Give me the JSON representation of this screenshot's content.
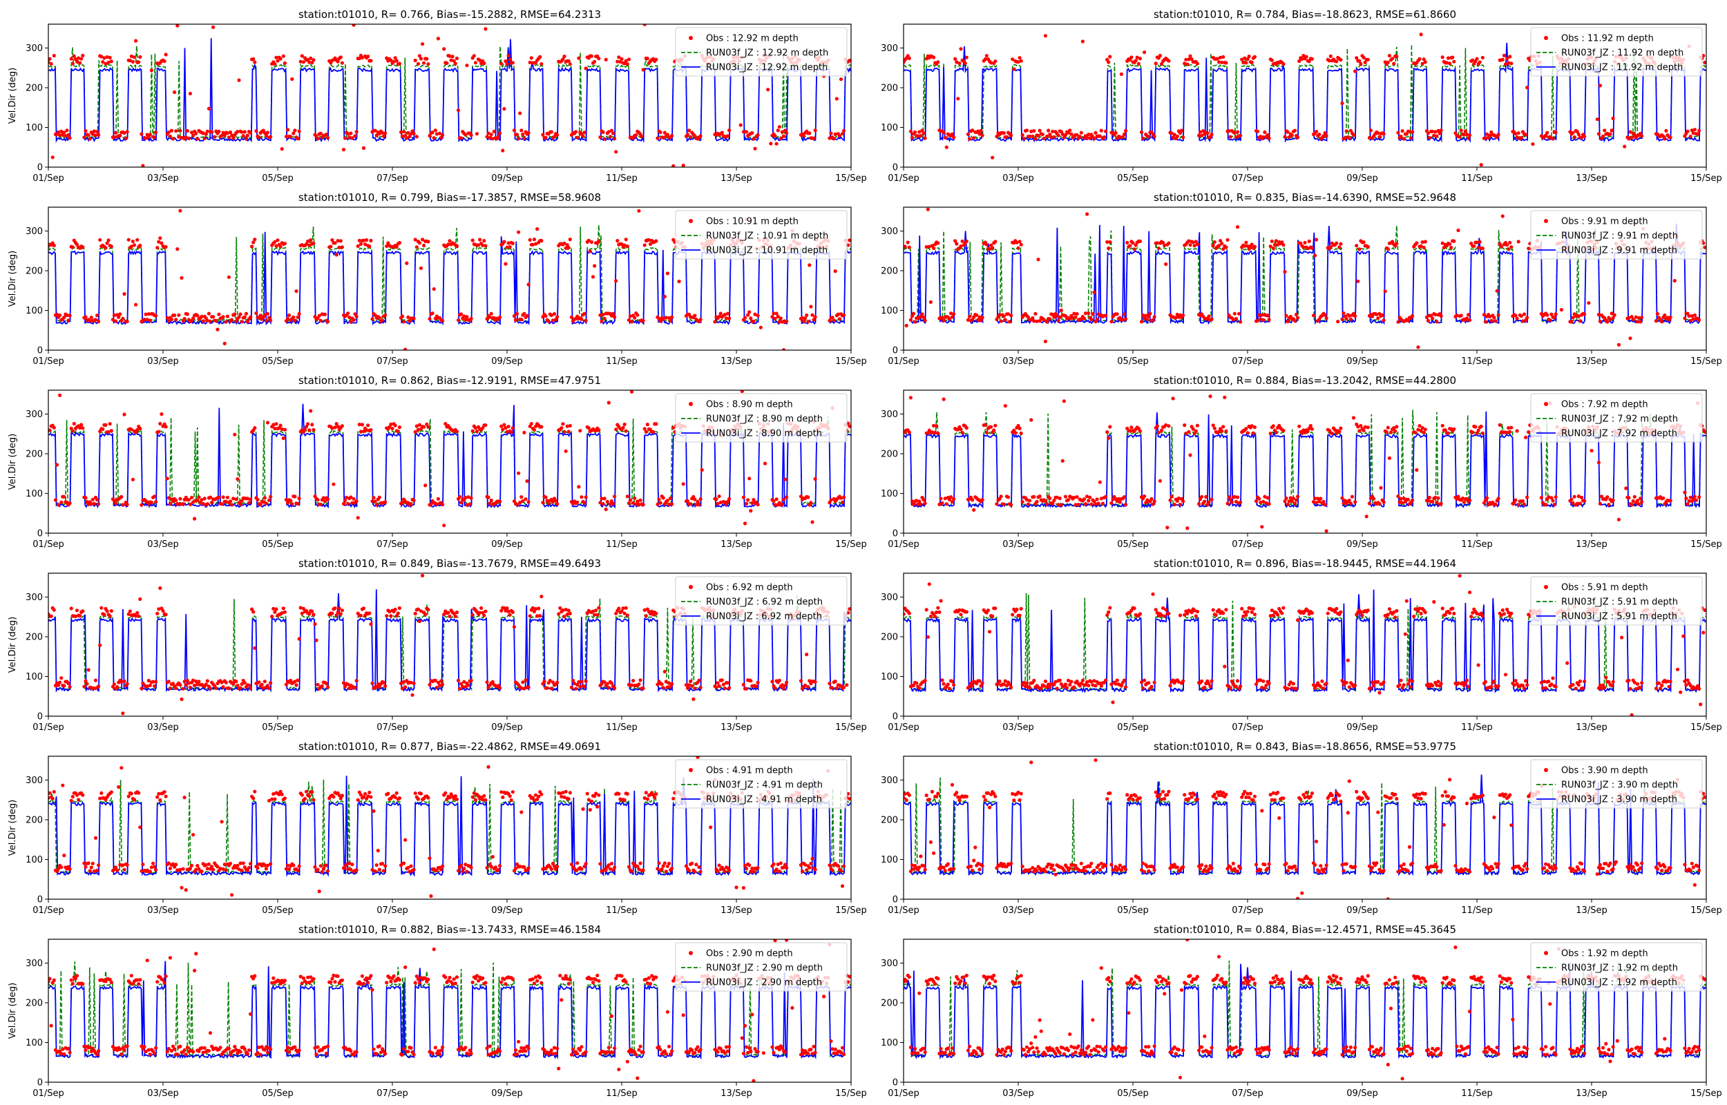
{
  "figure": {
    "station": "t01010",
    "ylabel": "Vel.Dir (deg)",
    "x_tick_labels": [
      "01/Sep",
      "03/Sep",
      "05/Sep",
      "07/Sep",
      "09/Sep",
      "11/Sep",
      "13/Sep",
      "15/Sep"
    ],
    "y_tick_labels": [
      "0",
      "100",
      "200",
      "300"
    ],
    "colors": {
      "obs": "#ff0000",
      "run03f": "#008000",
      "run03i": "#0000ff",
      "axes": "#000000"
    }
  },
  "chart_data": [
    {
      "type": "line",
      "title": "station:t01010, R= 0.766, Bias=-15.2882, RMSE=64.2313",
      "ylabel": "Vel.Dir (deg)",
      "xlim": [
        "2023-09-01",
        "2023-09-15"
      ],
      "ylim": [
        0,
        360
      ],
      "depth": 12.92,
      "legend": [
        "Obs : 12.92 m depth",
        "RUN03f_JZ : 12.92 m depth",
        "RUN03i_JZ : 12.92 m depth"
      ],
      "legend_position": "top-right",
      "series": [
        {
          "name": "Obs : 12.92 m depth",
          "style": "scatter",
          "low": 82,
          "high": 270
        },
        {
          "name": "RUN03f_JZ : 12.92 m depth",
          "style": "dashed",
          "low": 75,
          "high": 255
        },
        {
          "name": "RUN03i_JZ : 12.92 m depth",
          "style": "solid",
          "low": 70,
          "high": 245
        }
      ]
    },
    {
      "type": "line",
      "title": "station:t01010, R= 0.784, Bias=-18.8623, RMSE=61.8660",
      "ylabel": "",
      "xlim": [
        "2023-09-01",
        "2023-09-15"
      ],
      "ylim": [
        0,
        360
      ],
      "depth": 11.92,
      "legend": [
        "Obs : 11.92 m depth",
        "RUN03f_JZ : 11.92 m depth",
        "RUN03i_JZ : 11.92 m depth"
      ],
      "legend_position": "top-right",
      "series": [
        {
          "name": "Obs : 11.92 m depth",
          "style": "scatter",
          "low": 82,
          "high": 270
        },
        {
          "name": "RUN03f_JZ : 11.92 m depth",
          "style": "dashed",
          "low": 75,
          "high": 255
        },
        {
          "name": "RUN03i_JZ : 11.92 m depth",
          "style": "solid",
          "low": 70,
          "high": 245
        }
      ]
    },
    {
      "type": "line",
      "title": "station:t01010, R= 0.799, Bias=-17.3857, RMSE=58.9608",
      "ylabel": "Vel.Dir (deg)",
      "xlim": [
        "2023-09-01",
        "2023-09-15"
      ],
      "ylim": [
        0,
        360
      ],
      "depth": 10.91,
      "legend": [
        "Obs : 10.91 m depth",
        "RUN03f_JZ : 10.91 m depth",
        "RUN03i_JZ : 10.91 m depth"
      ],
      "legend_position": "top-right",
      "series": [
        {
          "name": "Obs : 10.91 m depth",
          "style": "scatter",
          "low": 82,
          "high": 268
        },
        {
          "name": "RUN03f_JZ : 10.91 m depth",
          "style": "dashed",
          "low": 75,
          "high": 255
        },
        {
          "name": "RUN03i_JZ : 10.91 m depth",
          "style": "solid",
          "low": 70,
          "high": 245
        }
      ]
    },
    {
      "type": "line",
      "title": "station:t01010, R= 0.835, Bias=-14.6390, RMSE=52.9648",
      "ylabel": "",
      "xlim": [
        "2023-09-01",
        "2023-09-15"
      ],
      "ylim": [
        0,
        360
      ],
      "depth": 9.91,
      "legend": [
        "Obs : 9.91 m depth",
        "RUN03f_JZ : 9.91 m depth",
        "RUN03i_JZ : 9.91 m depth"
      ],
      "legend_position": "top-right",
      "series": [
        {
          "name": "Obs : 9.91 m depth",
          "style": "scatter",
          "low": 82,
          "high": 265
        },
        {
          "name": "RUN03f_JZ : 9.91 m depth",
          "style": "dashed",
          "low": 75,
          "high": 255
        },
        {
          "name": "RUN03i_JZ : 9.91 m depth",
          "style": "solid",
          "low": 72,
          "high": 245
        }
      ]
    },
    {
      "type": "line",
      "title": "station:t01010, R= 0.862, Bias=-12.9191, RMSE=47.9751",
      "ylabel": "Vel.Dir (deg)",
      "xlim": [
        "2023-09-01",
        "2023-09-15"
      ],
      "ylim": [
        0,
        360
      ],
      "depth": 8.9,
      "legend": [
        "Obs : 8.90 m depth",
        "RUN03f_JZ : 8.90 m depth",
        "RUN03i_JZ : 8.90 m depth"
      ],
      "legend_position": "top-right",
      "series": [
        {
          "name": "Obs : 8.90 m depth",
          "style": "scatter",
          "low": 82,
          "high": 265
        },
        {
          "name": "RUN03f_JZ : 8.90 m depth",
          "style": "dashed",
          "low": 75,
          "high": 255
        },
        {
          "name": "RUN03i_JZ : 8.90 m depth",
          "style": "solid",
          "low": 70,
          "high": 248
        }
      ]
    },
    {
      "type": "line",
      "title": "station:t01010, R= 0.884, Bias=-13.2042, RMSE=44.2800",
      "ylabel": "",
      "xlim": [
        "2023-09-01",
        "2023-09-15"
      ],
      "ylim": [
        0,
        360
      ],
      "depth": 7.92,
      "legend": [
        "Obs : 7.92 m depth",
        "RUN03f_JZ : 7.92 m depth",
        "RUN03i_JZ : 7.92 m depth"
      ],
      "legend_position": "top-right",
      "series": [
        {
          "name": "Obs : 7.92 m depth",
          "style": "scatter",
          "low": 82,
          "high": 262
        },
        {
          "name": "RUN03f_JZ : 7.92 m depth",
          "style": "dashed",
          "low": 72,
          "high": 252
        },
        {
          "name": "RUN03i_JZ : 7.92 m depth",
          "style": "solid",
          "low": 70,
          "high": 245
        }
      ]
    },
    {
      "type": "line",
      "title": "station:t01010, R= 0.849, Bias=-13.7679, RMSE=49.6493",
      "ylabel": "Vel.Dir (deg)",
      "xlim": [
        "2023-09-01",
        "2023-09-15"
      ],
      "ylim": [
        0,
        360
      ],
      "depth": 6.92,
      "legend": [
        "Obs : 6.92 m depth",
        "RUN03f_JZ : 6.92 m depth",
        "RUN03i_JZ : 6.92 m depth"
      ],
      "legend_position": "top-right",
      "series": [
        {
          "name": "Obs : 6.92 m depth",
          "style": "scatter",
          "low": 80,
          "high": 262
        },
        {
          "name": "RUN03f_JZ : 6.92 m depth",
          "style": "dashed",
          "low": 70,
          "high": 250
        },
        {
          "name": "RUN03i_JZ : 6.92 m depth",
          "style": "solid",
          "low": 68,
          "high": 242
        }
      ]
    },
    {
      "type": "line",
      "title": "station:t01010, R= 0.896, Bias=-18.9445, RMSE=44.1964",
      "ylabel": "",
      "xlim": [
        "2023-09-01",
        "2023-09-15"
      ],
      "ylim": [
        0,
        360
      ],
      "depth": 5.91,
      "legend": [
        "Obs : 5.91 m depth",
        "RUN03f_JZ : 5.91 m depth",
        "RUN03i_JZ : 5.91 m depth"
      ],
      "legend_position": "top-right",
      "series": [
        {
          "name": "Obs : 5.91 m depth",
          "style": "scatter",
          "low": 80,
          "high": 262
        },
        {
          "name": "RUN03f_JZ : 5.91 m depth",
          "style": "dashed",
          "low": 68,
          "high": 248
        },
        {
          "name": "RUN03i_JZ : 5.91 m depth",
          "style": "solid",
          "low": 66,
          "high": 242
        }
      ]
    },
    {
      "type": "line",
      "title": "station:t01010, R= 0.877, Bias=-22.4862, RMSE=49.0691",
      "ylabel": "Vel.Dir (deg)",
      "xlim": [
        "2023-09-01",
        "2023-09-15"
      ],
      "ylim": [
        0,
        360
      ],
      "depth": 4.91,
      "legend": [
        "Obs : 4.91 m depth",
        "RUN03f_JZ : 4.91 m depth",
        "RUN03i_JZ : 4.91 m depth"
      ],
      "legend_position": "top-right",
      "series": [
        {
          "name": "Obs : 4.91 m depth",
          "style": "scatter",
          "low": 80,
          "high": 260
        },
        {
          "name": "RUN03f_JZ : 4.91 m depth",
          "style": "dashed",
          "low": 68,
          "high": 245
        },
        {
          "name": "RUN03i_JZ : 4.91 m depth",
          "style": "solid",
          "low": 65,
          "high": 240
        }
      ]
    },
    {
      "type": "line",
      "title": "station:t01010, R= 0.843, Bias=-18.8656, RMSE=53.9775",
      "ylabel": "",
      "xlim": [
        "2023-09-01",
        "2023-09-15"
      ],
      "ylim": [
        0,
        360
      ],
      "depth": 3.9,
      "legend": [
        "Obs : 3.90 m depth",
        "RUN03f_JZ : 3.90 m depth",
        "RUN03i_JZ : 3.90 m depth"
      ],
      "legend_position": "top-right",
      "series": [
        {
          "name": "Obs : 3.90 m depth",
          "style": "scatter",
          "low": 80,
          "high": 260
        },
        {
          "name": "RUN03f_JZ : 3.90 m depth",
          "style": "dashed",
          "low": 68,
          "high": 245
        },
        {
          "name": "RUN03i_JZ : 3.90 m depth",
          "style": "solid",
          "low": 66,
          "high": 240
        }
      ]
    },
    {
      "type": "line",
      "title": "station:t01010, R= 0.882, Bias=-13.7433, RMSE=46.1584",
      "ylabel": "Vel.Dir (deg)",
      "xlim": [
        "2023-09-01",
        "2023-09-15"
      ],
      "ylim": [
        0,
        360
      ],
      "depth": 2.9,
      "legend": [
        "Obs : 2.90 m depth",
        "RUN03f_JZ : 2.90 m depth",
        "RUN03i_JZ : 2.90 m depth"
      ],
      "legend_position": "top-right",
      "series": [
        {
          "name": "Obs : 2.90 m depth",
          "style": "scatter",
          "low": 80,
          "high": 258
        },
        {
          "name": "RUN03f_JZ : 2.90 m depth",
          "style": "dashed",
          "low": 68,
          "high": 245
        },
        {
          "name": "RUN03i_JZ : 2.90 m depth",
          "style": "solid",
          "low": 66,
          "high": 238
        }
      ]
    },
    {
      "type": "line",
      "title": "station:t01010, R= 0.884, Bias=-12.4571, RMSE=45.3645",
      "ylabel": "",
      "xlim": [
        "2023-09-01",
        "2023-09-15"
      ],
      "ylim": [
        0,
        360
      ],
      "depth": 1.92,
      "legend": [
        "Obs : 1.92 m depth",
        "RUN03f_JZ : 1.92 m depth",
        "RUN03i_JZ : 1.92 m depth"
      ],
      "legend_position": "top-right",
      "series": [
        {
          "name": "Obs : 1.92 m depth",
          "style": "scatter",
          "low": 80,
          "high": 258
        },
        {
          "name": "RUN03f_JZ : 1.92 m depth",
          "style": "dashed",
          "low": 68,
          "high": 245
        },
        {
          "name": "RUN03i_JZ : 1.92 m depth",
          "style": "solid",
          "low": 66,
          "high": 238
        }
      ]
    }
  ]
}
